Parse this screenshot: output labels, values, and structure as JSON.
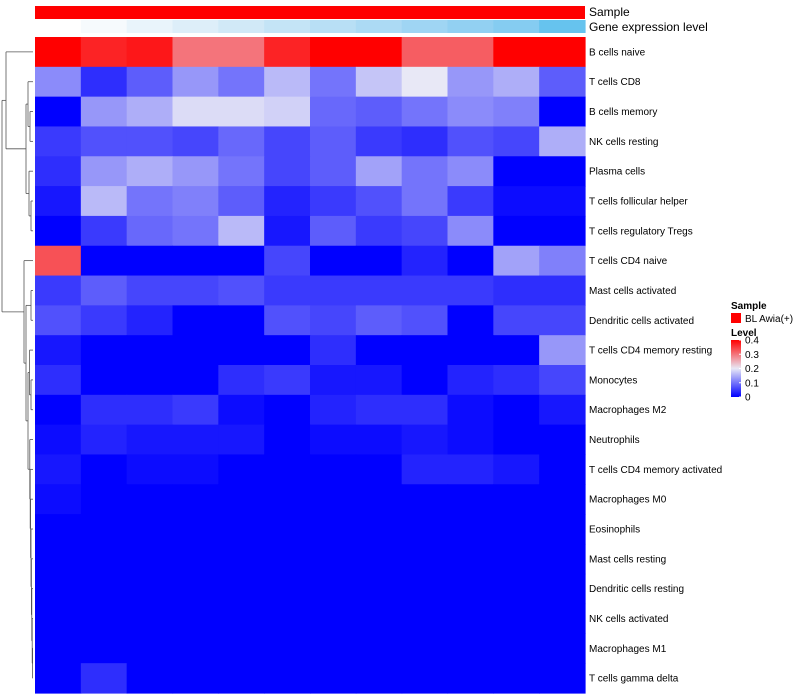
{
  "chart_data": {
    "type": "heatmap",
    "annotations": {
      "sample": {
        "label": "Sample",
        "color": "#ff0000"
      },
      "gene_expression": {
        "label": "Gene expression level",
        "colors": [
          "#ffffff",
          "#f6fafd",
          "#e9f4fb",
          "#ddeef9",
          "#d1e9f7",
          "#c4e4f6",
          "#b8dff5",
          "#acdaf4",
          "#9fd5f3",
          "#92d0f2",
          "#85ccf1",
          "#66c3ee"
        ]
      }
    },
    "rows": [
      "B cells naive",
      "T cells CD8",
      "B cells memory",
      "NK cells resting",
      "Plasma cells",
      "T cells follicular helper",
      "T cells regulatory  Tregs",
      "T cells CD4 naive",
      "Mast cells activated",
      "Dendritic cells activated",
      "T cells CD4 memory resting",
      "Monocytes",
      "Macrophages M2",
      "Neutrophils",
      "T cells CD4 memory activated",
      "Macrophages M0",
      "Eosinophils",
      "Mast cells resting",
      "Dendritic cells resting",
      "NK cells activated",
      "Macrophages M1",
      "T cells gamma delta"
    ],
    "values": [
      [
        0.4,
        0.37,
        0.38,
        0.3,
        0.3,
        0.37,
        0.43,
        0.41,
        0.32,
        0.32,
        0.43,
        0.43
      ],
      [
        0.12,
        0.04,
        0.08,
        0.13,
        0.1,
        0.16,
        0.1,
        0.17,
        0.2,
        0.13,
        0.15,
        0.08
      ],
      [
        0.0,
        0.13,
        0.15,
        0.19,
        0.19,
        0.18,
        0.09,
        0.08,
        0.1,
        0.12,
        0.11,
        0.0
      ],
      [
        0.05,
        0.07,
        0.07,
        0.06,
        0.09,
        0.06,
        0.08,
        0.05,
        0.04,
        0.07,
        0.06,
        0.15
      ],
      [
        0.04,
        0.13,
        0.15,
        0.13,
        0.1,
        0.06,
        0.08,
        0.14,
        0.1,
        0.12,
        0.0,
        0.0
      ],
      [
        0.02,
        0.16,
        0.1,
        0.11,
        0.08,
        0.03,
        0.05,
        0.07,
        0.1,
        0.05,
        0.01,
        0.01
      ],
      [
        0.0,
        0.05,
        0.09,
        0.1,
        0.16,
        0.02,
        0.08,
        0.05,
        0.06,
        0.12,
        0.0,
        0.0
      ],
      [
        0.33,
        0.0,
        0.0,
        0.0,
        0.0,
        0.06,
        0.0,
        0.0,
        0.03,
        0.0,
        0.14,
        0.11
      ],
      [
        0.05,
        0.08,
        0.06,
        0.06,
        0.07,
        0.05,
        0.05,
        0.05,
        0.05,
        0.05,
        0.04,
        0.04
      ],
      [
        0.07,
        0.05,
        0.03,
        0.0,
        0.0,
        0.07,
        0.06,
        0.08,
        0.07,
        0.0,
        0.06,
        0.06
      ],
      [
        0.02,
        0.0,
        0.0,
        0.0,
        0.0,
        0.0,
        0.04,
        0.0,
        0.0,
        0.0,
        0.0,
        0.13
      ],
      [
        0.04,
        0.0,
        0.0,
        0.0,
        0.04,
        0.05,
        0.02,
        0.02,
        0.0,
        0.03,
        0.04,
        0.06
      ],
      [
        0.0,
        0.04,
        0.04,
        0.05,
        0.01,
        0.0,
        0.03,
        0.04,
        0.04,
        0.01,
        0.0,
        0.02
      ],
      [
        0.01,
        0.03,
        0.02,
        0.02,
        0.02,
        0.0,
        0.01,
        0.01,
        0.02,
        0.01,
        0.0,
        0.0
      ],
      [
        0.02,
        0.0,
        0.01,
        0.01,
        0.0,
        0.0,
        0.0,
        0.0,
        0.03,
        0.03,
        0.02,
        0.0
      ],
      [
        0.01,
        0.0,
        0.0,
        0.0,
        0.0,
        0.0,
        0.0,
        0.0,
        0.0,
        0.0,
        0.0,
        0.0
      ],
      [
        0.0,
        0.0,
        0.0,
        0.0,
        0.0,
        0.0,
        0.0,
        0.0,
        0.0,
        0.0,
        0.0,
        0.0
      ],
      [
        0.0,
        0.0,
        0.0,
        0.0,
        0.0,
        0.0,
        0.0,
        0.0,
        0.0,
        0.0,
        0.0,
        0.0
      ],
      [
        0.0,
        0.0,
        0.0,
        0.0,
        0.0,
        0.0,
        0.0,
        0.0,
        0.0,
        0.0,
        0.0,
        0.0
      ],
      [
        0.0,
        0.0,
        0.0,
        0.0,
        0.0,
        0.0,
        0.0,
        0.0,
        0.0,
        0.0,
        0.0,
        0.0
      ],
      [
        0.0,
        0.0,
        0.0,
        0.0,
        0.0,
        0.0,
        0.0,
        0.0,
        0.0,
        0.0,
        0.0,
        0.0
      ],
      [
        0.0,
        0.04,
        0.0,
        0.0,
        0.0,
        0.0,
        0.0,
        0.0,
        0.0,
        0.0,
        0.0,
        0.0
      ]
    ],
    "color_scale": {
      "min": 0,
      "mid": 0.2,
      "max": 0.4,
      "low_color": "#0000ff",
      "mid_color": "#e8e8f6",
      "high_color": "#ff0000"
    },
    "legend": {
      "placement": "right",
      "sample_title": "Sample",
      "sample_item": "BL Awia(+)",
      "level_title": "Level",
      "ticks": [
        0,
        0.1,
        0.2,
        0.3,
        0.4
      ]
    },
    "dendrogram": "rows"
  }
}
